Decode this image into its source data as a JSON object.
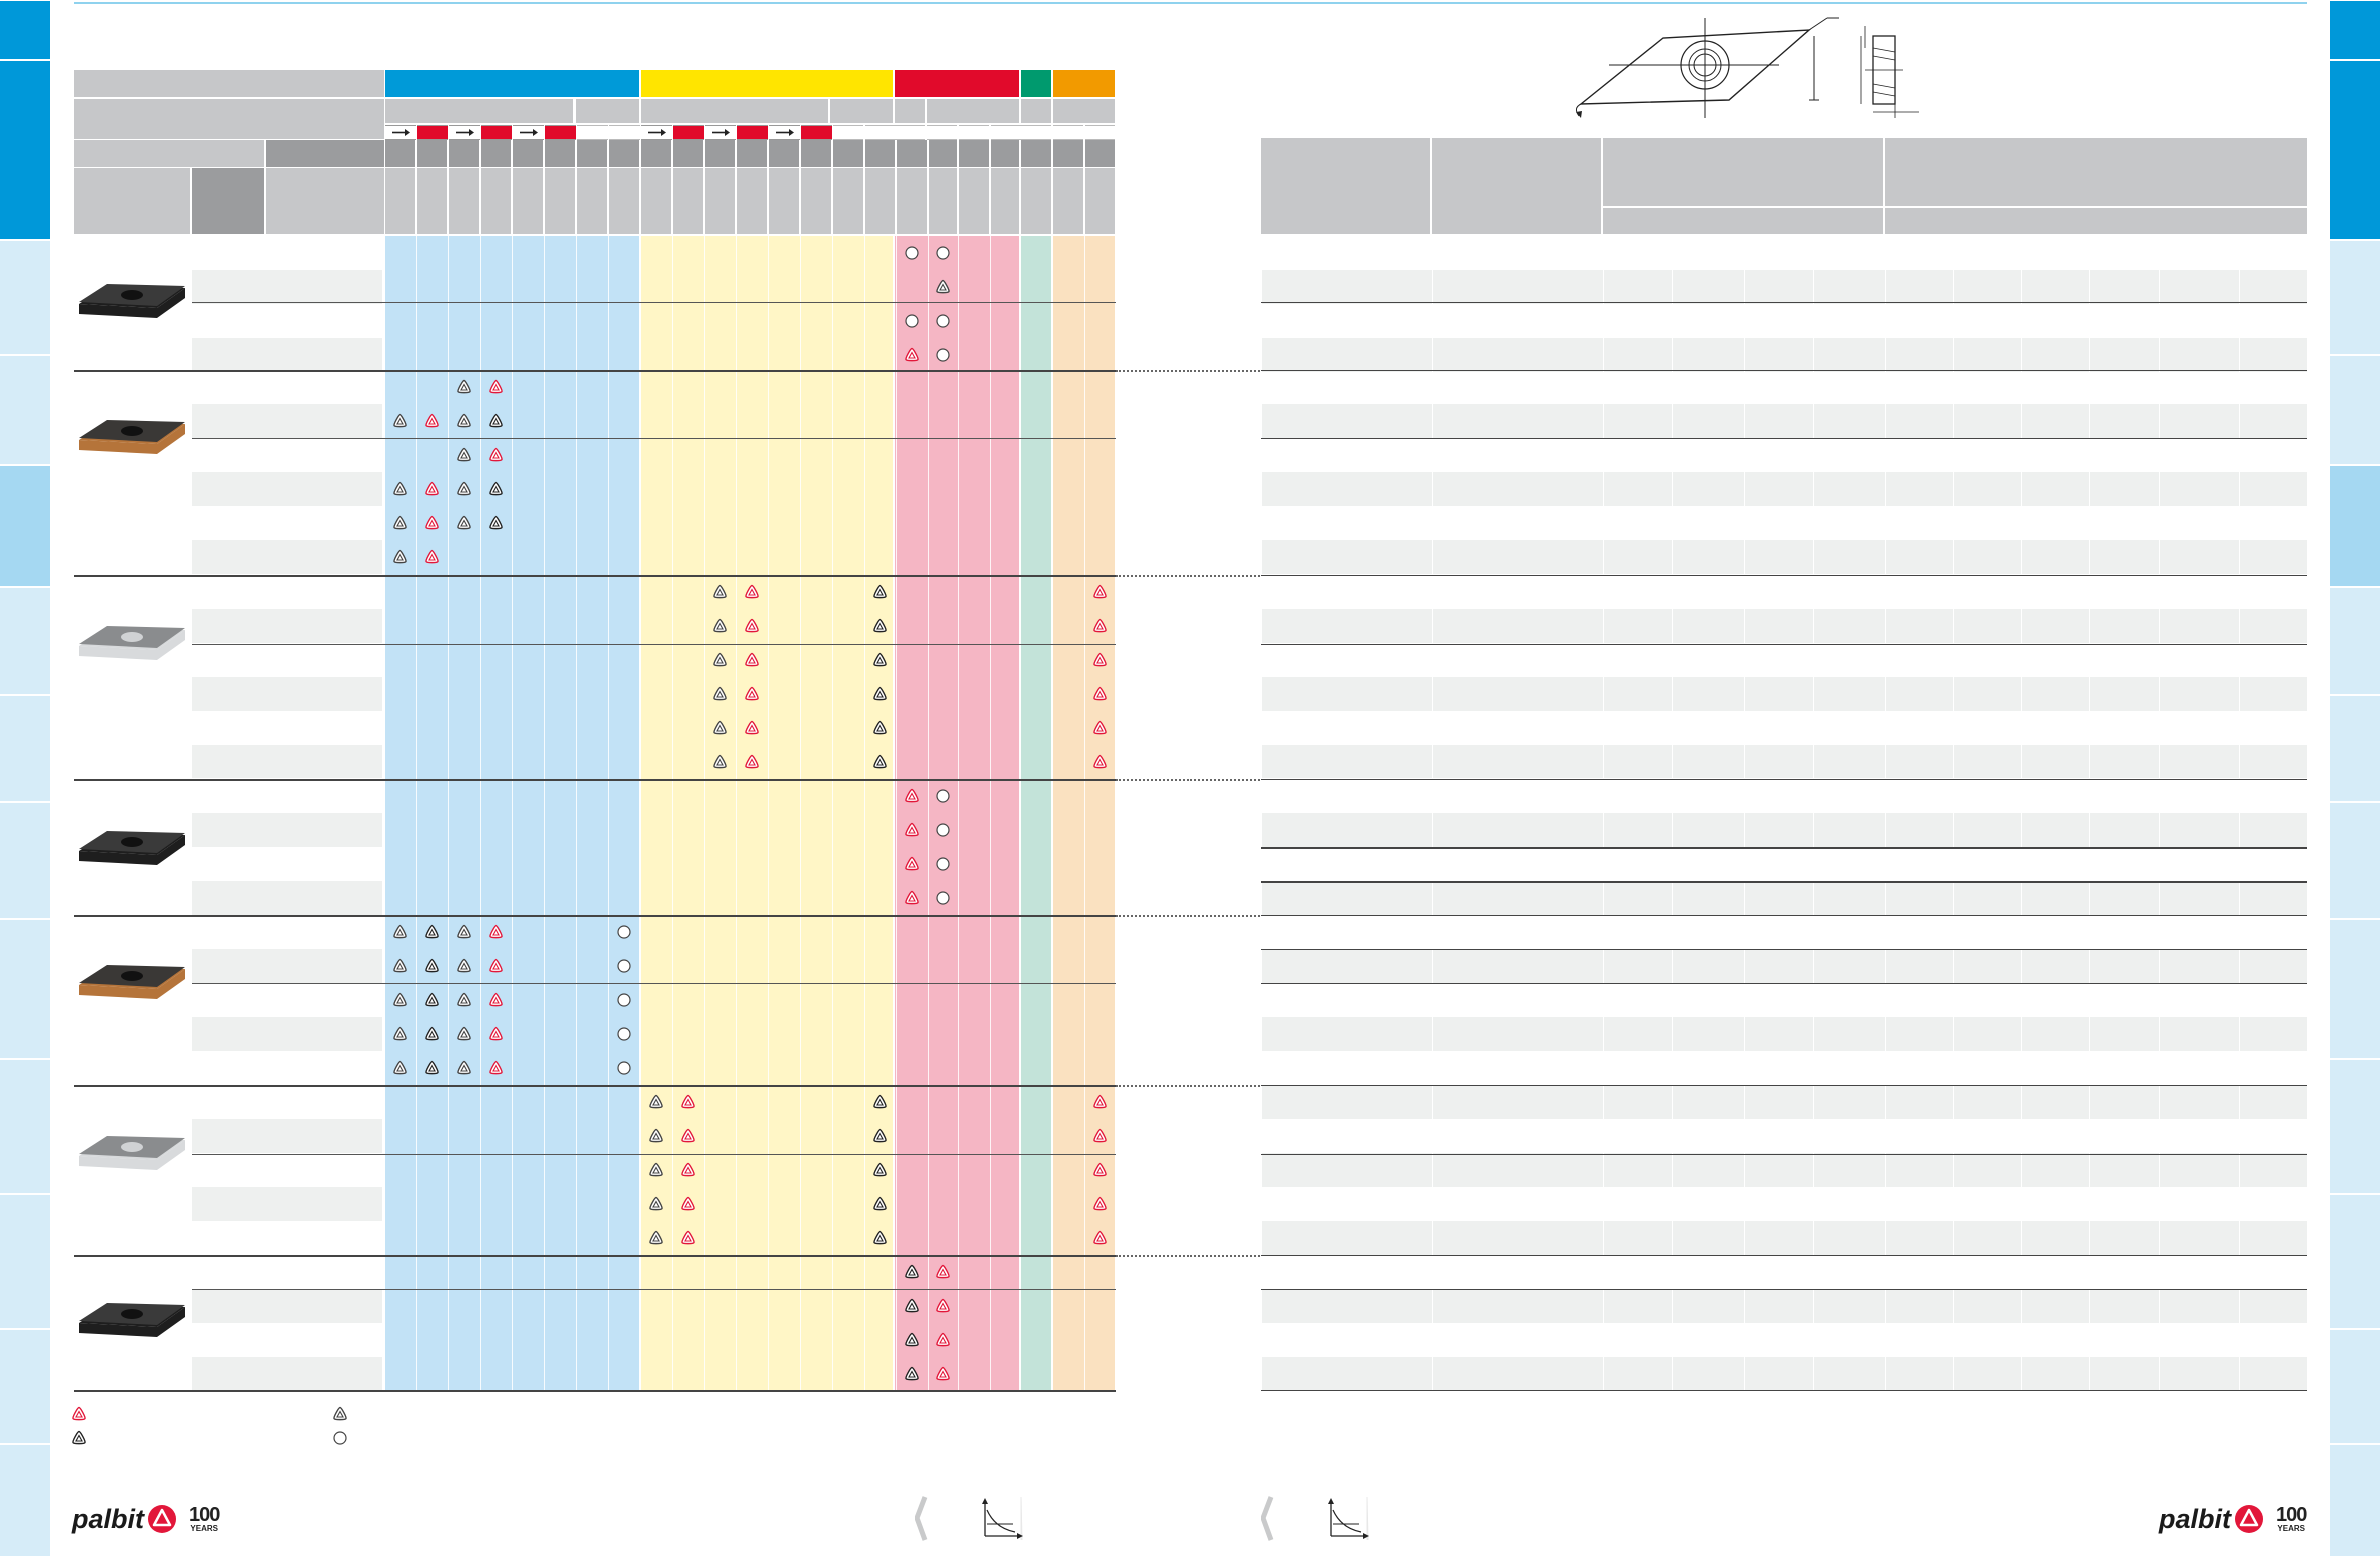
{
  "colors": {
    "steel_blue": "#009ad8",
    "steel_blue_light": "#c2e2f6",
    "stainless_yellow": "#ffe500",
    "stainless_yellow_light": "#fff6c6",
    "castiron_red": "#e10a2b",
    "castiron_red_light": "#f5b6c4",
    "nonferrous_green": "#009a6e",
    "nonferrous_green_light": "#c3e3d9",
    "superalloy_orange": "#f29a00",
    "superalloy_orange_light": "#fae1c0",
    "header_gray": "#c6c7c9",
    "header_dark_gray": "#9b9c9e",
    "row_shade": "#eef0ef",
    "side_tab_dark": "#0098d9",
    "side_tab_light": "#d6ecf8",
    "side_tab_mid": "#a5d8f2",
    "brand_red": "#e2173a"
  },
  "branding": {
    "left_logo": "palbit",
    "right_logo": "palbit",
    "anniversary_number": "100",
    "anniversary_word": "YEARS"
  },
  "icons": {
    "insert_primary": "red-triangle-insert-icon",
    "insert_alternative": "dark-triangle-insert-icon",
    "insert_optional": "outlined-triangle-insert-icon",
    "insert_available_circle": "circle-icon",
    "direction": "arrow-right-icon",
    "page_prev": "chevron-left-icon",
    "cutting_chart": "cutting-chart-icon",
    "insert_drawing": "rhombic-insert-drawing-icon"
  }
}
